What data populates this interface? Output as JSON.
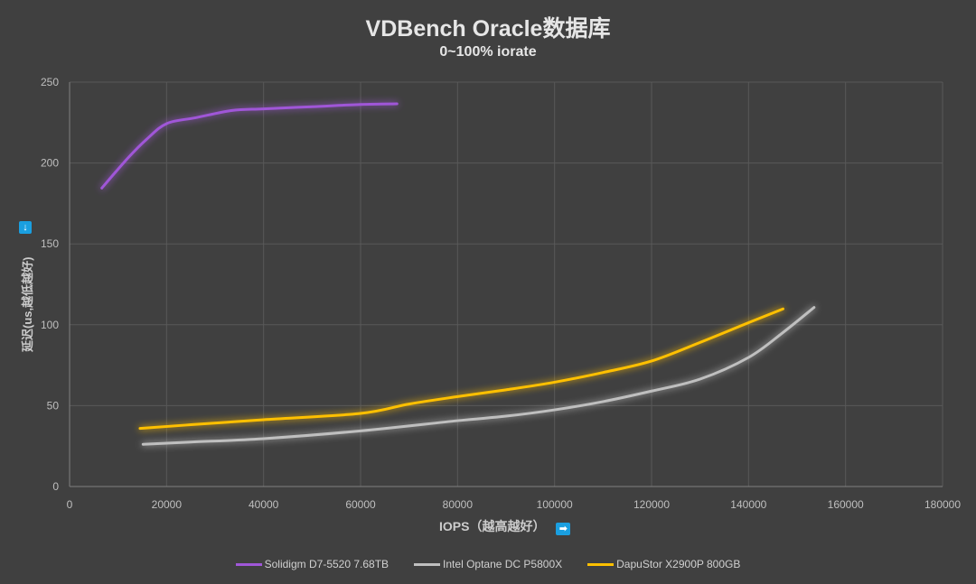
{
  "chart_data": {
    "type": "line",
    "title": "VDBench Oracle数据库",
    "subtitle": "0~100% iorate",
    "xlabel": "IOPS（越高越好）",
    "ylabel": "延迟(us,越低越好)",
    "xlim": [
      0,
      180000
    ],
    "ylim": [
      0,
      250
    ],
    "xticks": [
      0,
      20000,
      40000,
      60000,
      80000,
      100000,
      120000,
      140000,
      160000,
      180000
    ],
    "yticks": [
      0,
      50,
      100,
      150,
      200,
      250
    ],
    "grid": true,
    "legend_position": "bottom",
    "series": [
      {
        "name": "Solidigm D7-5520 7.68TB",
        "color": "#a057d8",
        "x": [
          6650,
          12000,
          16000,
          20100,
          26000,
          33500,
          40000,
          50000,
          60000,
          67500
        ],
        "y": [
          184.5,
          203,
          215,
          224.5,
          228,
          232.5,
          233.5,
          234.8,
          236.2,
          236.6
        ]
      },
      {
        "name": "Intel Optane DC P5800X",
        "color": "#bfbfbf",
        "x": [
          15150,
          25000,
          40000,
          60000,
          80000,
          90000,
          100000,
          110000,
          120000,
          130000,
          140000,
          147000,
          153500
        ],
        "y": [
          26.1,
          27.5,
          29.6,
          34.4,
          40.7,
          43.5,
          47.4,
          52.5,
          59,
          66.4,
          79.8,
          95,
          110.7
        ]
      },
      {
        "name": "DapuStor X2900P 800GB",
        "color": "#ffc000",
        "x": [
          14530,
          25000,
          40000,
          60000,
          70000,
          80000,
          90000,
          100000,
          110000,
          120000,
          130000,
          140000,
          147100
        ],
        "y": [
          35.9,
          38.2,
          41.3,
          45.2,
          51,
          55.6,
          59.8,
          64.5,
          70.5,
          77.6,
          89.1,
          101.3,
          109.8
        ]
      }
    ]
  },
  "icons": {
    "y_arrow": "↓",
    "x_arrow": "➡"
  }
}
